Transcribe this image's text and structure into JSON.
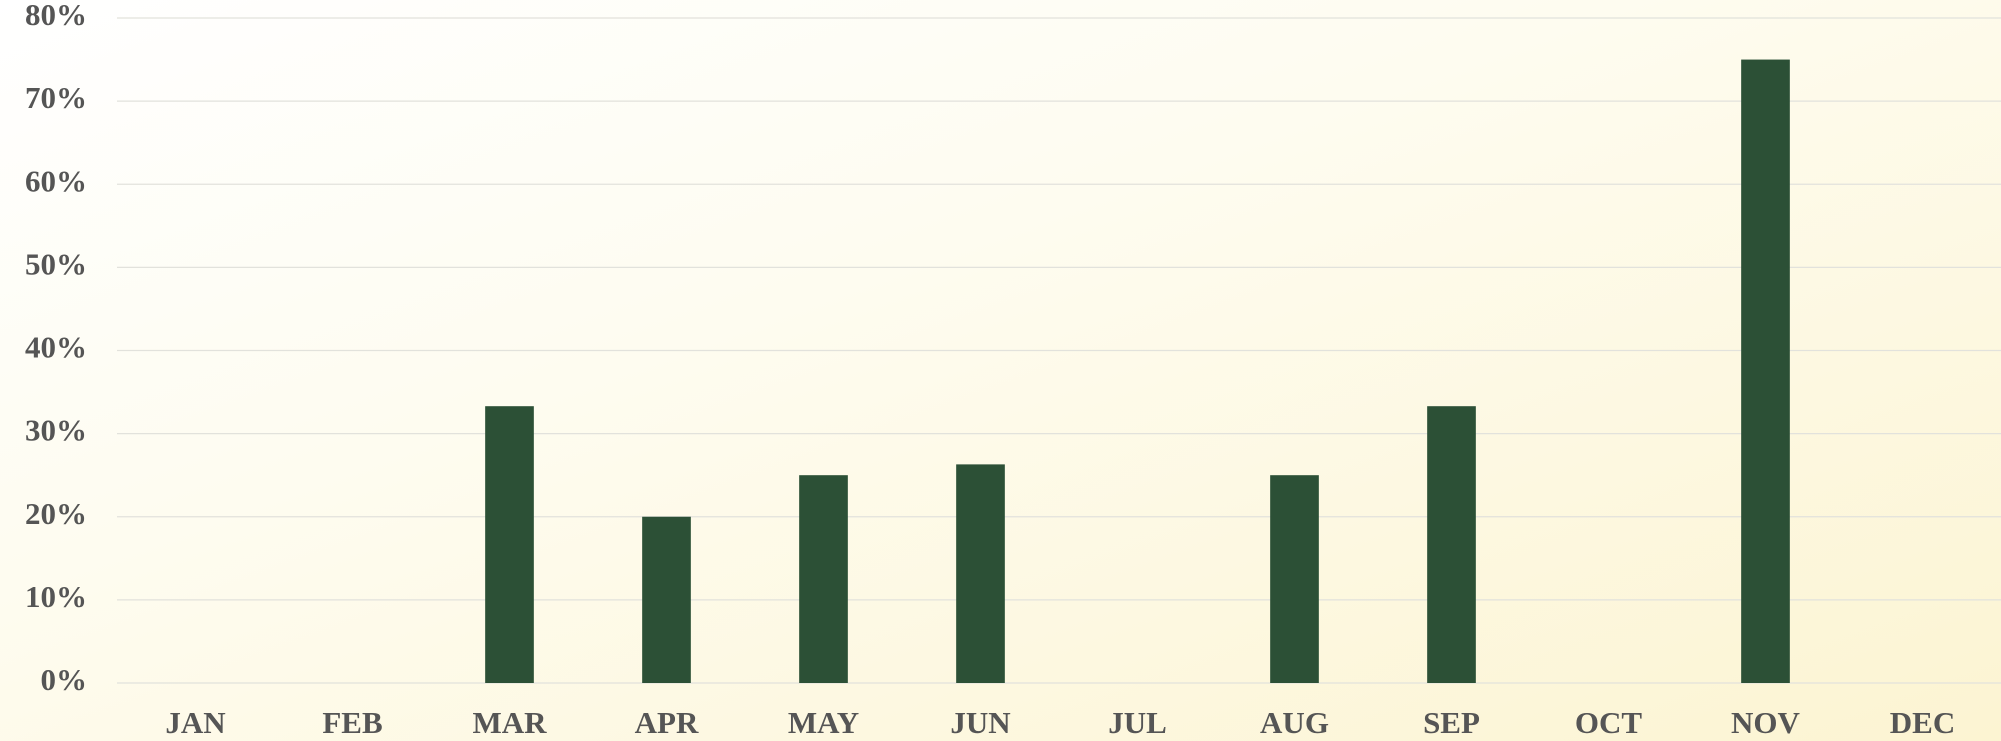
{
  "chart_data": {
    "type": "bar",
    "categories": [
      "JAN",
      "FEB",
      "MAR",
      "APR",
      "MAY",
      "JUN",
      "JUL",
      "AUG",
      "SEP",
      "OCT",
      "NOV",
      "DEC"
    ],
    "values": [
      0,
      0,
      33.3,
      20,
      25,
      26.3,
      0,
      25,
      33.3,
      0,
      75,
      0
    ],
    "color": "#2c5036",
    "ylim": [
      0,
      80
    ],
    "yticks": [
      {
        "value": 0,
        "label": "0%"
      },
      {
        "value": 10,
        "label": "10%"
      },
      {
        "value": 20,
        "label": "20%"
      },
      {
        "value": 30,
        "label": "30%"
      },
      {
        "value": 40,
        "label": "40%"
      },
      {
        "value": 50,
        "label": "50%"
      },
      {
        "value": 60,
        "label": "60%"
      },
      {
        "value": 70,
        "label": "70%"
      },
      {
        "value": 80,
        "label": "80%"
      }
    ],
    "grid": true
  }
}
